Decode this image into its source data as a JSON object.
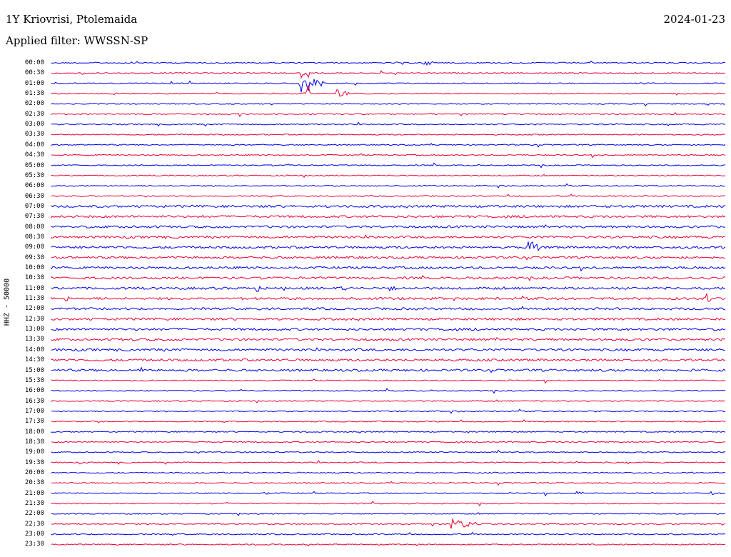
{
  "header": {
    "station": "1Y Kriovrisi, Ptolemaida",
    "date": "2024-01-23",
    "filter_label": "Applied filter: WWSSN-SP",
    "channel_label": "HHZ - 50000"
  },
  "colors": {
    "blue": "#0000ee",
    "red": "#ee0033"
  },
  "times": [
    "00:00",
    "00:30",
    "01:00",
    "01:30",
    "02:00",
    "02:30",
    "03:00",
    "03:30",
    "04:00",
    "04:30",
    "05:00",
    "05:30",
    "06:00",
    "06:30",
    "07:00",
    "07:30",
    "08:00",
    "08:30",
    "09:00",
    "09:30",
    "10:00",
    "10:30",
    "11:00",
    "11:30",
    "12:00",
    "12:30",
    "13:00",
    "13:30",
    "14:00",
    "14:30",
    "15:00",
    "15:30",
    "16:00",
    "16:30",
    "17:00",
    "17:30",
    "18:00",
    "18:30",
    "19:00",
    "19:30",
    "20:00",
    "20:30",
    "21:00",
    "21:30",
    "22:00",
    "22:30",
    "23:00",
    "23:30"
  ]
}
